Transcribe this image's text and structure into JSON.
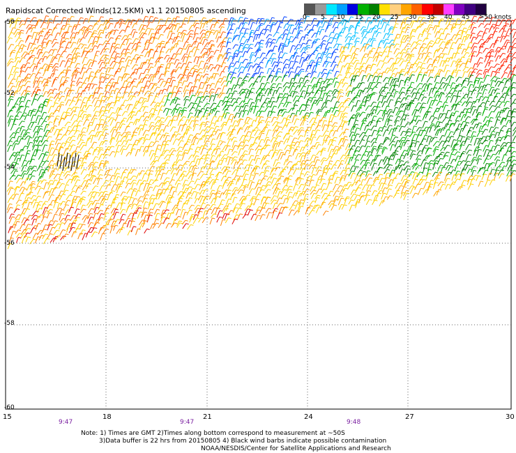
{
  "title": "Rapidscat Corrected Winds(12.5KM) v1.1 20150805 ascending",
  "speed_scale": {
    "labels": [
      "0",
      "5",
      "10",
      "15",
      "20",
      "25",
      "30",
      "35",
      "40",
      "45",
      ">50 knots"
    ],
    "colors": [
      "#555555",
      "#999999",
      "#00e8ff",
      "#00a0ff",
      "#0000e0",
      "#00b000",
      "#008000",
      "#ffe000",
      "#ffd080",
      "#ffa500",
      "#ff6000",
      "#ff0000",
      "#c00000",
      "#ff40ff",
      "#8000c0",
      "#400080",
      "#200040"
    ]
  },
  "latitude_labels": [
    "-50",
    "-52",
    "-54",
    "-56",
    "-58",
    "-60"
  ],
  "longitude_labels": [
    "15",
    "18",
    "21",
    "24",
    "27",
    "30"
  ],
  "pass_times": [
    "9:47",
    "9:47",
    "9:48"
  ],
  "notes": [
    "Note: 1) Times are GMT 2)Times along bottom correspond to measurement at ~50S",
    "3)Data buffer is 22 hrs from 20150805 4) Black wind barbs indicate possible contamination",
    "NOAA/NESDIS/Center for Satellite Applications and Research"
  ]
}
